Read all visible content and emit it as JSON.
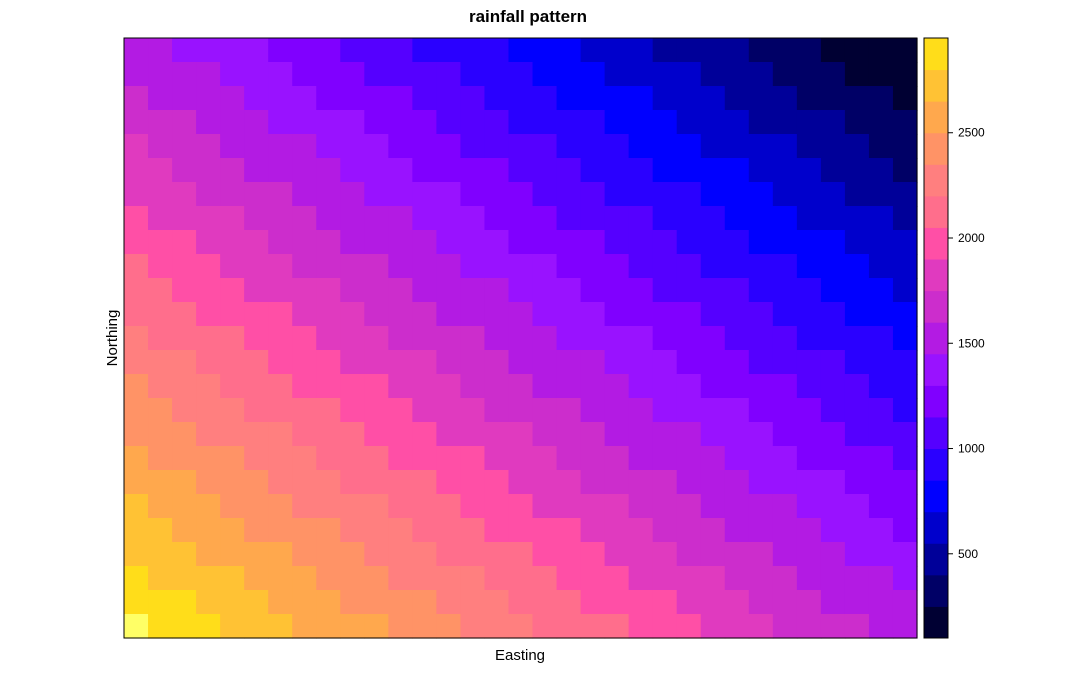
{
  "chart_data": {
    "type": "heatmap",
    "title": "rainfall pattern",
    "xlabel": "Easting",
    "ylabel": "Northing",
    "grid": false,
    "legend_placement": "right",
    "x_ticks_shown": false,
    "y_ticks_shown": false,
    "n_cols": 33,
    "n_rows": 25,
    "value_range": [
      100,
      2950
    ],
    "pattern": "rainfall decreases linearly from the south-west corner (about 2900) to the north-east corner (about 100), with level bands running diagonally",
    "colorkey": {
      "breaks": [
        100,
        250,
        400,
        550,
        700,
        850,
        1000,
        1150,
        1300,
        1450,
        1600,
        1750,
        1900,
        2050,
        2200,
        2350,
        2500,
        2650,
        2800,
        2950
      ],
      "colors": [
        "#000033",
        "#000066",
        "#000099",
        "#0000CC",
        "#0000FF",
        "#2A00FF",
        "#5500FF",
        "#8000FF",
        "#9912FF",
        "#B31BE3",
        "#CC2DCC",
        "#E03ABF",
        "#FF4FA6",
        "#FF6E8C",
        "#FF7F7F",
        "#FF9366",
        "#FFA84D",
        "#FFC234",
        "#FFDD1A",
        "#FFFF66"
      ],
      "tick_values": [
        500,
        1000,
        1500,
        2000,
        2500
      ],
      "tick_labels": [
        "500",
        "1000",
        "1500",
        "2000",
        "2500"
      ]
    }
  }
}
